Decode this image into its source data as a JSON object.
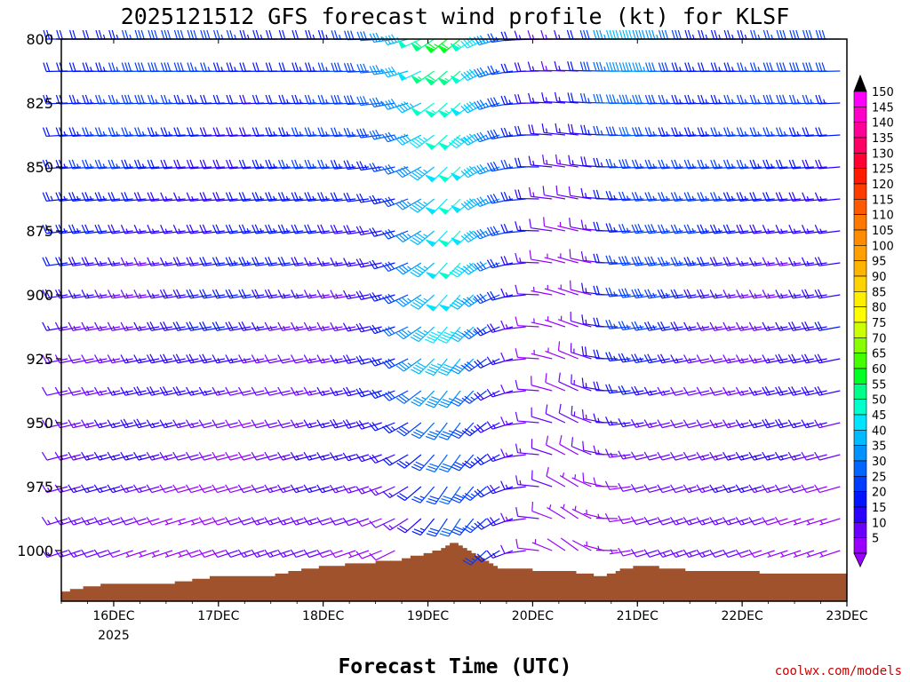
{
  "chart_data": {
    "type": "wind-barb-time-height",
    "title": "2025121512 GFS forecast wind profile (kt) for KLSF",
    "xlabel": "Forecast Time (UTC)",
    "ylabel": "",
    "credit": "coolwx.com/models",
    "x_ticks": [
      {
        "label": "16DEC",
        "sublabel": "2025",
        "day": 1
      },
      {
        "label": "17DEC",
        "day": 2
      },
      {
        "label": "18DEC",
        "day": 3
      },
      {
        "label": "19DEC",
        "day": 4
      },
      {
        "label": "20DEC",
        "day": 5
      },
      {
        "label": "21DEC",
        "day": 6
      },
      {
        "label": "22DEC",
        "day": 7
      },
      {
        "label": "23DEC",
        "day": 8
      }
    ],
    "xlim_days": [
      0.5,
      8.0
    ],
    "y_ticks": [
      {
        "label": "800",
        "value": 800
      },
      {
        "label": "825",
        "value": 825
      },
      {
        "label": "850",
        "value": 850
      },
      {
        "label": "875",
        "value": 875
      },
      {
        "label": "900",
        "value": 900
      },
      {
        "label": "925",
        "value": 925
      },
      {
        "label": "950",
        "value": 950
      },
      {
        "label": "975",
        "value": 975
      },
      {
        "label": "1000",
        "value": 1000
      }
    ],
    "ylim_hpa": [
      800,
      1020
    ],
    "ground_color": "#a0522d",
    "terrain_hpa": [
      {
        "day": 0.5,
        "p": 1016
      },
      {
        "day": 0.75,
        "p": 1014
      },
      {
        "day": 1.0,
        "p": 1013
      },
      {
        "day": 1.5,
        "p": 1013
      },
      {
        "day": 2.0,
        "p": 1010
      },
      {
        "day": 2.5,
        "p": 1010
      },
      {
        "day": 2.85,
        "p": 1007
      },
      {
        "day": 3.3,
        "p": 1005
      },
      {
        "day": 3.7,
        "p": 1004
      },
      {
        "day": 4.1,
        "p": 1000
      },
      {
        "day": 4.25,
        "p": 997
      },
      {
        "day": 4.55,
        "p": 1004
      },
      {
        "day": 4.7,
        "p": 1007
      },
      {
        "day": 5.3,
        "p": 1008
      },
      {
        "day": 5.7,
        "p": 1010
      },
      {
        "day": 5.85,
        "p": 1007
      },
      {
        "day": 6.1,
        "p": 1006
      },
      {
        "day": 6.6,
        "p": 1008
      },
      {
        "day": 7.0,
        "p": 1008
      },
      {
        "day": 7.35,
        "p": 1009
      },
      {
        "day": 8.0,
        "p": 1009
      }
    ],
    "colorbar": {
      "labels": [
        "150",
        "145",
        "140",
        "135",
        "130",
        "125",
        "120",
        "115",
        "110",
        "105",
        "100",
        "95",
        "90",
        "85",
        "80",
        "75",
        "70",
        "65",
        "60",
        "55",
        "50",
        "45",
        "40",
        "35",
        "30",
        "25",
        "20",
        "15",
        "10",
        "5"
      ],
      "colors": [
        "#ff00ff",
        "#ff00c8",
        "#ff0096",
        "#ff0064",
        "#ff0032",
        "#ff1a00",
        "#ff3c00",
        "#ff5a00",
        "#ff7800",
        "#ff8c00",
        "#ff9f00",
        "#ffb400",
        "#ffd200",
        "#ffee00",
        "#ffff00",
        "#ccff00",
        "#88ff00",
        "#44ff00",
        "#00ff22",
        "#00ff88",
        "#00ffcc",
        "#00e4ff",
        "#00bbff",
        "#0092ff",
        "#0066ff",
        "#003cff",
        "#0014ff",
        "#2a00ff",
        "#6a00ff",
        "#9900ff"
      ],
      "arrow_top_color": "#000000",
      "arrow_bottom_color": "#9900ff"
    }
  }
}
